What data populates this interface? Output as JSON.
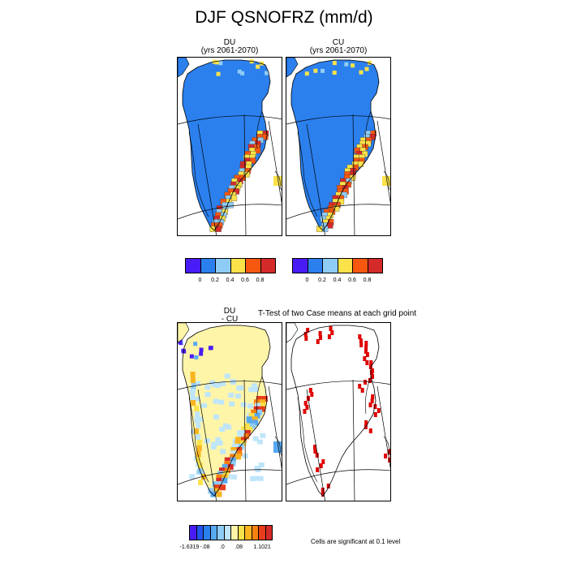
{
  "title": "DJF QSNOFRZ (mm/d)",
  "panels": {
    "du": {
      "name": "DU",
      "subtitle": "(yrs 2061-2070)"
    },
    "cu": {
      "name": "CU",
      "subtitle": "(yrs 2061-2070)"
    },
    "diff": {
      "line1": "DU",
      "line2": "- CU"
    },
    "ttest": {
      "title": "T-Test of two Case means at each grid point"
    }
  },
  "colorbar_top": {
    "colors": [
      "#4a1cf5",
      "#2b80ee",
      "#8fccf5",
      "#fbe24a",
      "#f7580f",
      "#d42a2a"
    ],
    "labels": [
      "0",
      "0.2",
      "0.4",
      "0.6",
      "0.8"
    ]
  },
  "colorbar_diff": {
    "colors": [
      "#4a1cf5",
      "#2255ee",
      "#2b80ee",
      "#58a9f2",
      "#8fccf5",
      "#bfe5fa",
      "#fff5a8",
      "#fbe24a",
      "#f9b420",
      "#f7800f",
      "#e83d1a",
      "#d42a2a"
    ],
    "labels": [
      "-1.6319",
      "-.08",
      ".0",
      ".08",
      "1.1021"
    ]
  },
  "note": "Cells are significant at 0.1 level",
  "chart_data": {
    "type": "heatmap",
    "variable": "QSNOFRZ",
    "units": "mm/d",
    "season": "DJF",
    "years": "2061-2070",
    "panels": [
      "DU",
      "CU",
      "DU - CU",
      "T-Test of two Case means at each grid point"
    ],
    "colorbar_levels": [
      0,
      0.2,
      0.4,
      0.6,
      0.8
    ],
    "diff_range": [
      -1.6319,
      1.1021
    ],
    "diff_tick_labels": [
      "-1.6319",
      "-.08",
      ".0",
      ".08",
      "1.1021"
    ],
    "significance_level": 0.1
  }
}
